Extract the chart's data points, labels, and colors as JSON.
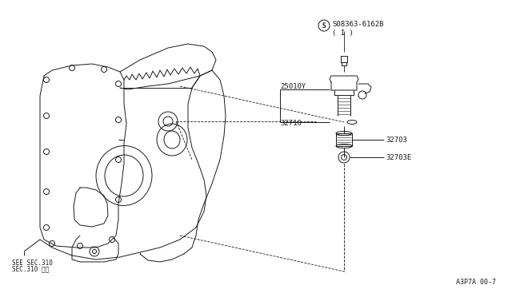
{
  "background_color": "#ffffff",
  "fig_width": 6.4,
  "fig_height": 3.72,
  "dpi": 100,
  "part_number": "A3P7A 00-7",
  "labels": {
    "bolt_label": "S08363-6162B",
    "bolt_sub": "( I )",
    "sensor": "25010Y",
    "pinion": "32710",
    "gear": "32703",
    "gear_e": "32703E",
    "see_sec1": "SEE SEC.310",
    "see_sec2": "SEC.310 参照"
  },
  "line_color": "#1a1a1a",
  "lw": 0.7
}
